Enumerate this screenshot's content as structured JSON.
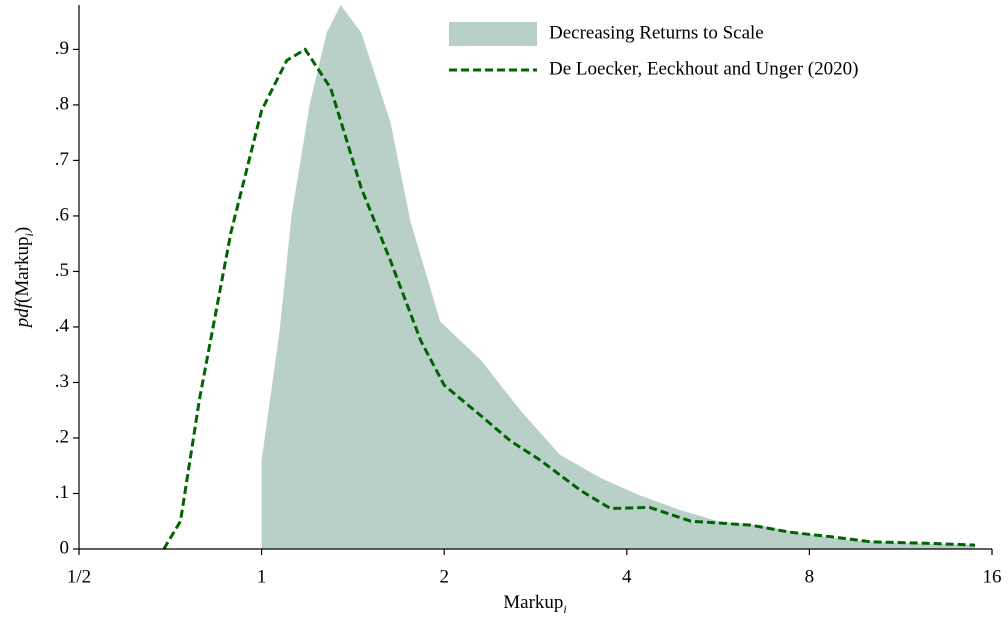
{
  "chart_data": {
    "type": "density",
    "x_label": {
      "text": "Markup",
      "subscript": "i"
    },
    "y_label": {
      "prefix": "pdf",
      "text": "(Markup",
      "subscript": "i",
      "suffix": ")"
    },
    "xscale": "log2",
    "xlim": [
      0.5,
      16
    ],
    "xticks": [
      {
        "value": 0.5,
        "label": "1/2"
      },
      1,
      2,
      4,
      8,
      16
    ],
    "ylim": [
      0,
      0.98
    ],
    "yticks": [
      0,
      {
        "value": 0.1,
        "label": ".1"
      },
      {
        "value": 0.2,
        "label": ".2"
      },
      {
        "value": 0.3,
        "label": ".3"
      },
      {
        "value": 0.4,
        "label": ".4"
      },
      {
        "value": 0.5,
        "label": ".5"
      },
      {
        "value": 0.6,
        "label": ".6"
      },
      {
        "value": 0.7,
        "label": ".7"
      },
      {
        "value": 0.8,
        "label": ".8"
      },
      {
        "value": 0.9,
        "label": ".9"
      }
    ],
    "legend": "upper right",
    "series": [
      {
        "name": "Decreasing Returns to Scale",
        "style": "area",
        "color": "#b9d0c9",
        "x": [
          1.0,
          1.07,
          1.12,
          1.2,
          1.28,
          1.35,
          1.46,
          1.63,
          1.76,
          1.97,
          2.3,
          2.67,
          3.1,
          3.62,
          4.2,
          4.9,
          5.7,
          6.6,
          7.7,
          9.3,
          11.3,
          15.0
        ],
        "values": [
          0.16,
          0.39,
          0.6,
          0.8,
          0.93,
          0.98,
          0.93,
          0.77,
          0.59,
          0.41,
          0.34,
          0.25,
          0.17,
          0.128,
          0.097,
          0.07,
          0.049,
          0.043,
          0.029,
          0.016,
          0.011,
          0.007
        ]
      },
      {
        "name": "De Loecker, Eeckhout and Unger (2020)",
        "style": "dashed-line",
        "color": "#006400",
        "x": [
          0.69,
          0.735,
          0.79,
          0.89,
          1.0,
          1.1,
          1.18,
          1.3,
          1.46,
          1.63,
          1.83,
          2.0,
          2.3,
          2.57,
          2.88,
          3.36,
          3.76,
          4.36,
          5.1,
          6.4,
          7.45,
          8.7,
          10.1,
          12.7,
          15.0
        ],
        "values": [
          0,
          0.05,
          0.27,
          0.57,
          0.79,
          0.88,
          0.9,
          0.83,
          0.65,
          0.52,
          0.375,
          0.295,
          0.24,
          0.195,
          0.16,
          0.105,
          0.073,
          0.075,
          0.05,
          0.043,
          0.03,
          0.022,
          0.013,
          0.01,
          0.007
        ]
      }
    ]
  }
}
